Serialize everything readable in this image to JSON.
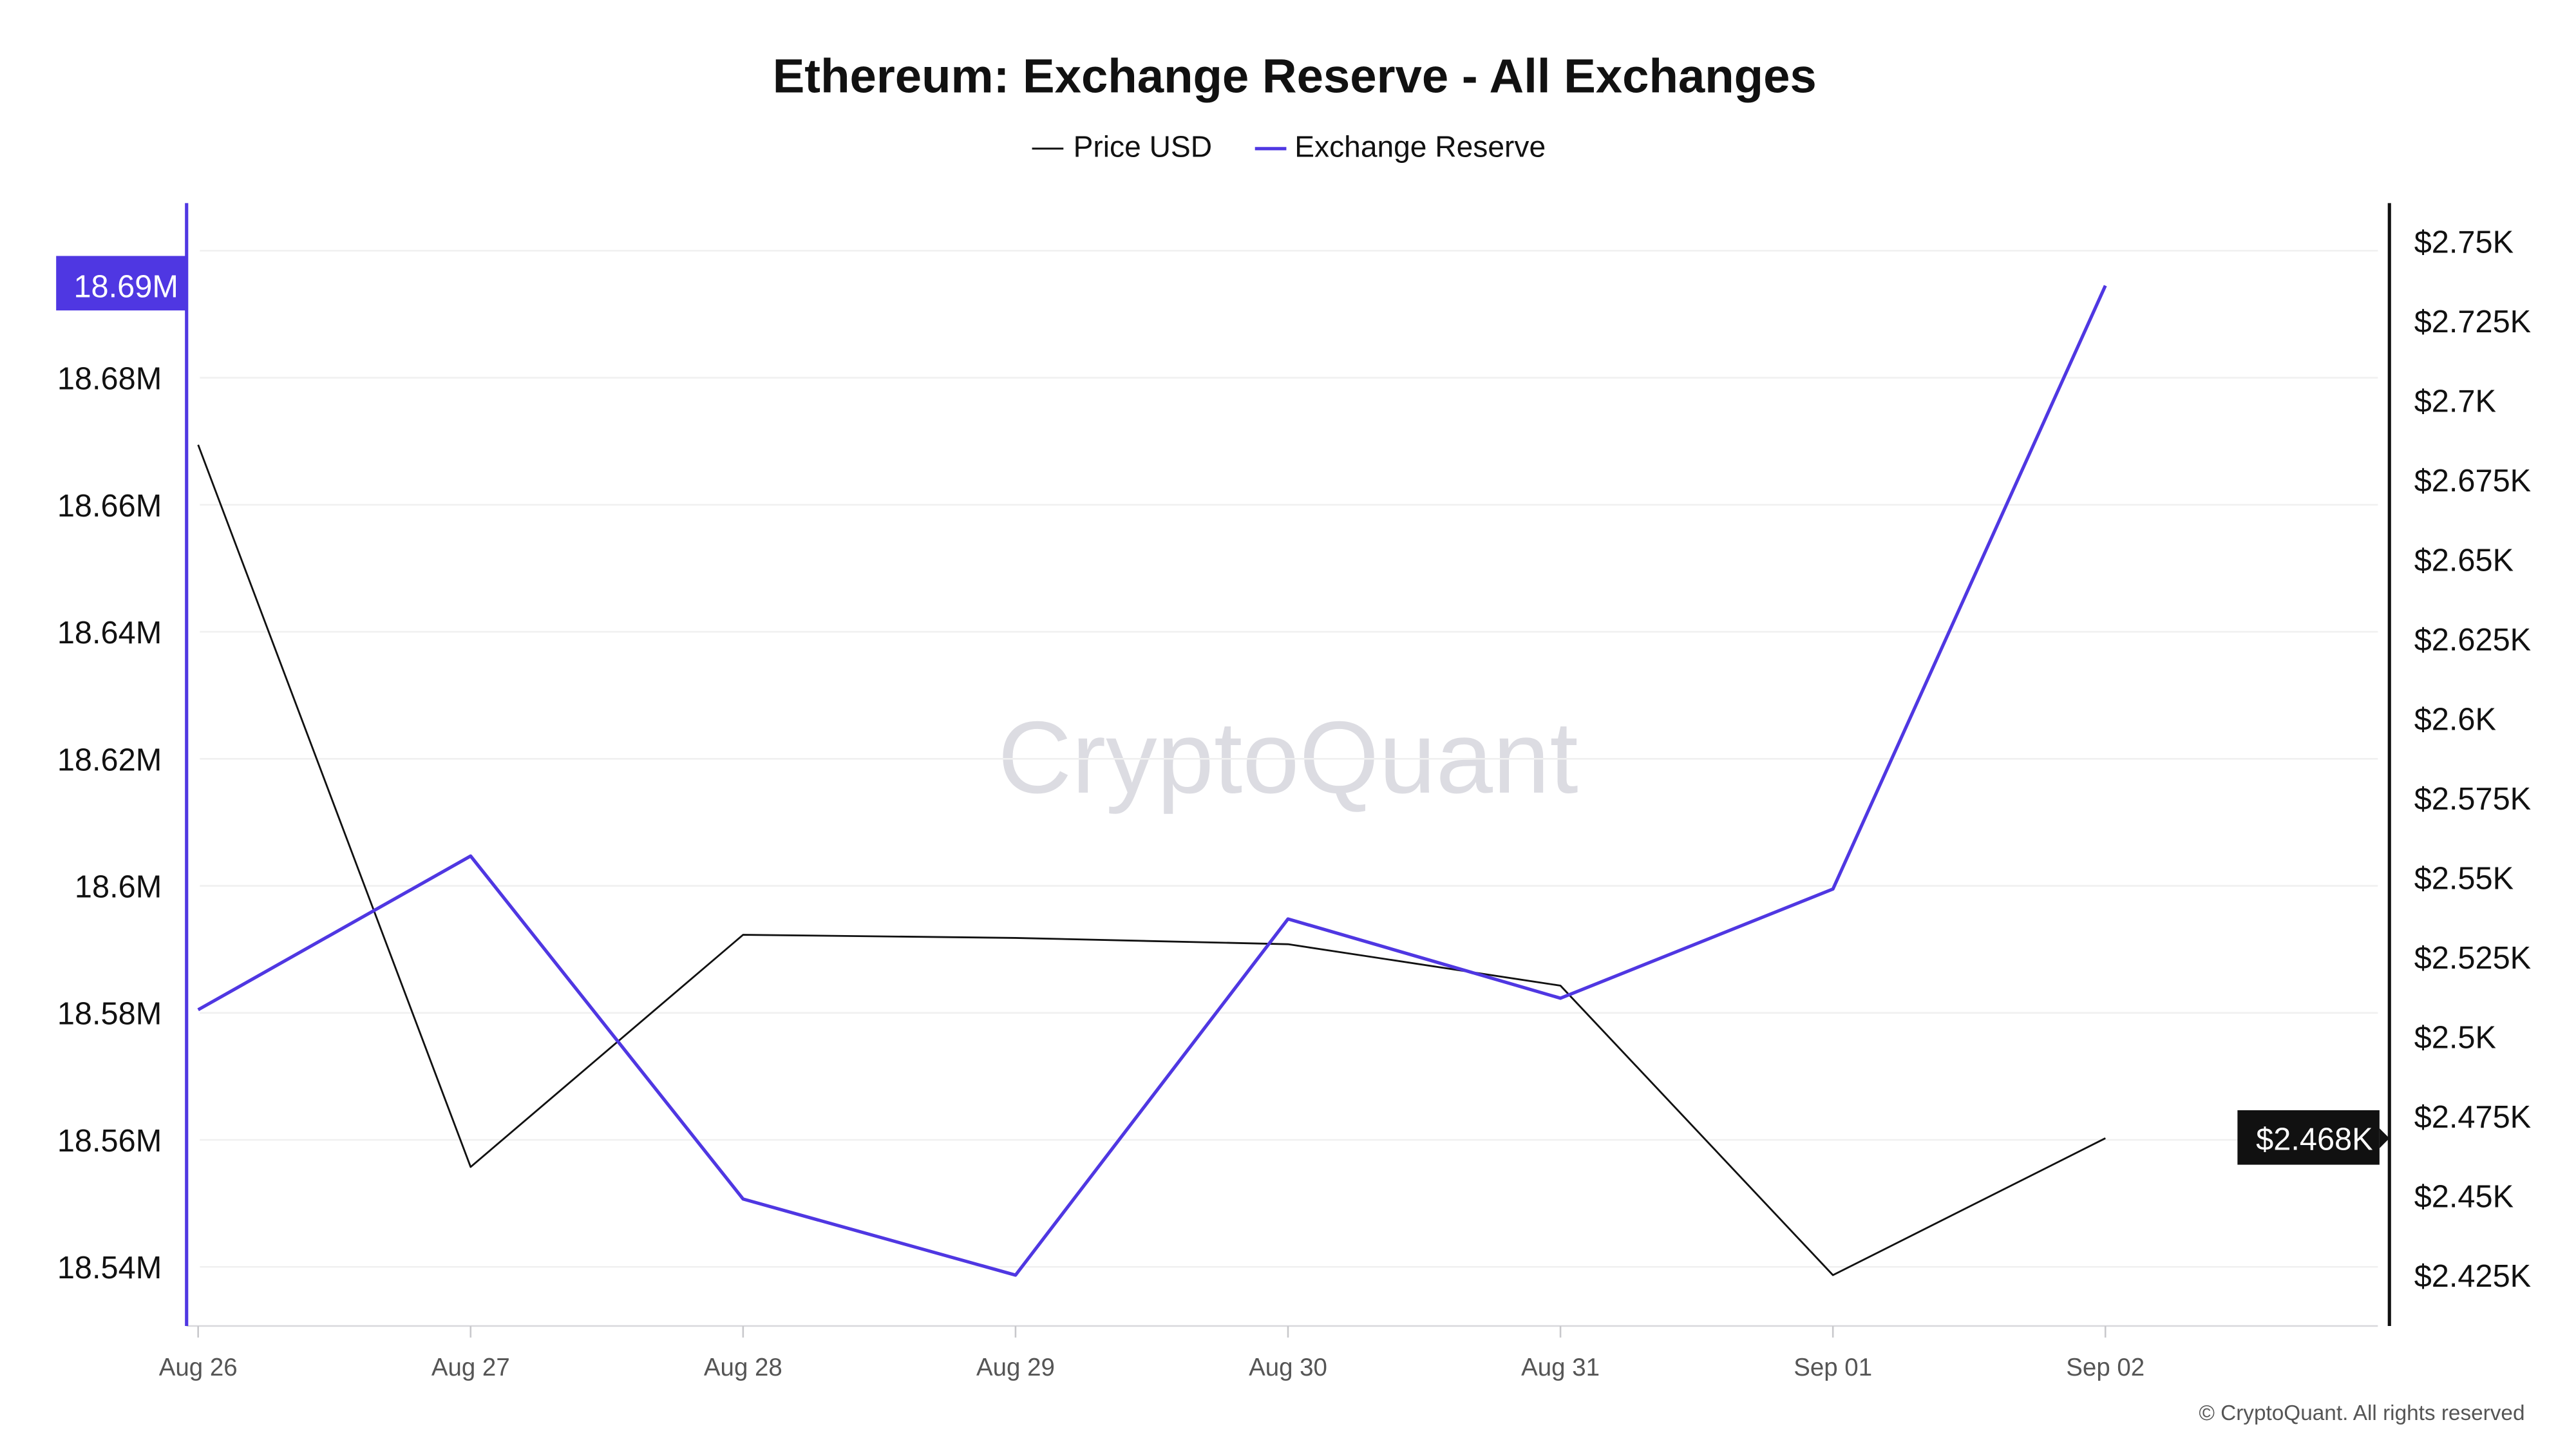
{
  "chart_data": {
    "type": "line",
    "title": "Ethereum: Exchange Reserve - All Exchanges",
    "legend": {
      "placement": "top-center",
      "entries": [
        "Price USD",
        "Exchange Reserve"
      ]
    },
    "categories": [
      "Aug 26",
      "Aug 27",
      "Aug 28",
      "Aug 29",
      "Aug 30",
      "Aug 31",
      "Sep 01",
      "Sep 02"
    ],
    "series": [
      {
        "name": "Price USD",
        "axis": "right",
        "color": "#111111",
        "values": [
          2.686,
          2.459,
          2.532,
          2.531,
          2.529,
          2.516,
          2.425,
          2.468
        ]
      },
      {
        "name": "Exchange Reserve",
        "axis": "left",
        "color": "#4f37e2",
        "values": [
          18.5805,
          18.6047,
          18.5507,
          18.5387,
          18.5948,
          18.5823,
          18.5995,
          18.6945
        ]
      }
    ],
    "left_axis": {
      "unit": "M",
      "range": [
        18.5307,
        18.7075
      ],
      "ticks": [
        18.54,
        18.56,
        18.58,
        18.6,
        18.62,
        18.64,
        18.66,
        18.68
      ],
      "tick_labels": [
        "18.54M",
        "18.56M",
        "18.58M",
        "18.6M",
        "18.62M",
        "18.64M",
        "18.66M",
        "18.68M"
      ],
      "gridlines": [
        18.54,
        18.56,
        18.58,
        18.6,
        18.62,
        18.64,
        18.66,
        18.68,
        18.7
      ],
      "current_label": "18.69M",
      "current_color": "#4f37e2"
    },
    "right_axis": {
      "unit": "K USD",
      "range": [
        2.409,
        2.762
      ],
      "ticks": [
        2.425,
        2.45,
        2.475,
        2.5,
        2.525,
        2.55,
        2.575,
        2.6,
        2.625,
        2.65,
        2.675,
        2.7,
        2.725,
        2.75
      ],
      "tick_labels": [
        "$2.425K",
        "$2.45K",
        "$2.475K",
        "$2.5K",
        "$2.525K",
        "$2.55K",
        "$2.575K",
        "$2.6K",
        "$2.625K",
        "$2.65K",
        "$2.675K",
        "$2.7K",
        "$2.725K",
        "$2.75K"
      ],
      "current_label": "$2.468K",
      "current_color": "#111111"
    },
    "grid": true
  },
  "watermark": "CryptoQuant",
  "footer": "© CryptoQuant. All rights reserved"
}
